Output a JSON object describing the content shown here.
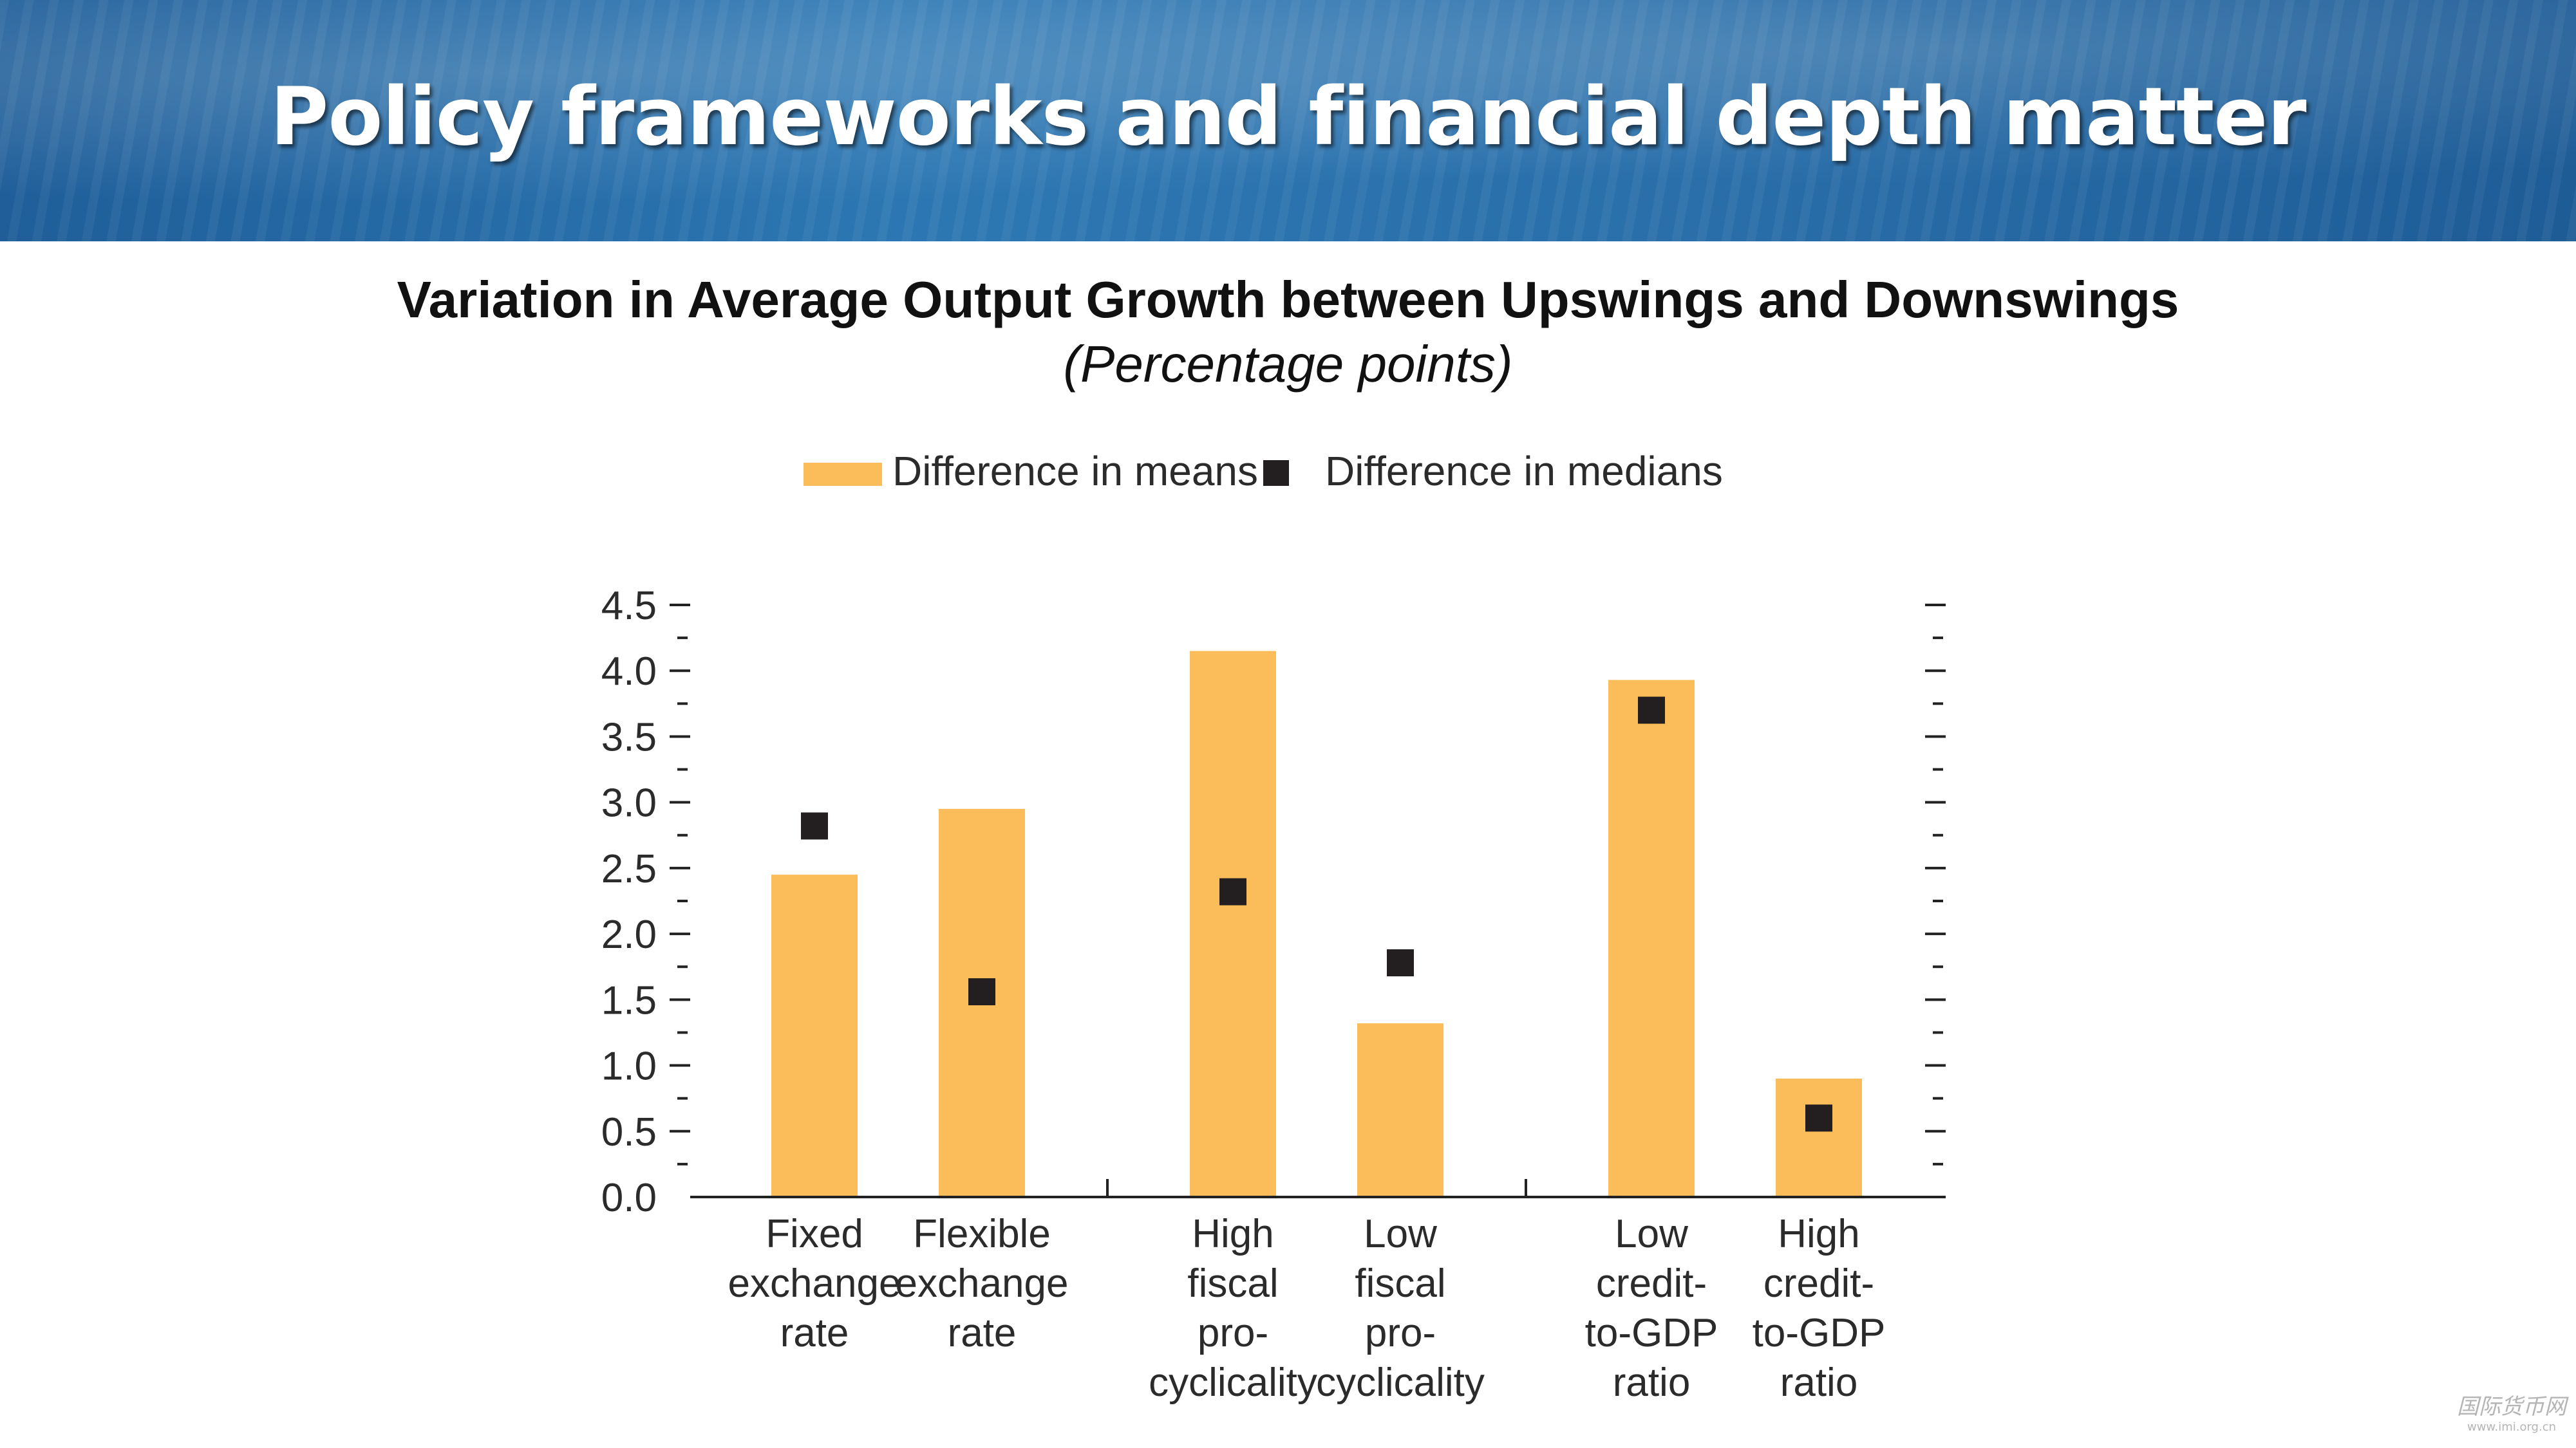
{
  "slide": {
    "title": "Policy frameworks and financial depth matter"
  },
  "chart_data": {
    "type": "bar",
    "title": "Variation in Average Output Growth between Upswings and Downswings",
    "subtitle": "(Percentage points)",
    "categories": [
      [
        "Fixed",
        "exchange",
        "rate"
      ],
      [
        "Flexible",
        "exchange",
        "rate"
      ],
      [
        "High",
        "fiscal",
        "pro-",
        "cyclicality"
      ],
      [
        "Low",
        "fiscal",
        "pro-",
        "cyclicality"
      ],
      [
        "Low",
        "credit-",
        "to-GDP",
        "ratio"
      ],
      [
        "High",
        "credit-",
        "to-GDP",
        "ratio"
      ]
    ],
    "groups": [
      [
        0,
        1
      ],
      [
        2,
        3
      ],
      [
        4,
        5
      ]
    ],
    "series": [
      {
        "name": "Difference in means",
        "kind": "bar",
        "color": "#fbbd59",
        "values": [
          2.45,
          2.95,
          4.15,
          1.32,
          3.93,
          0.9
        ]
      },
      {
        "name": "Difference in medians",
        "kind": "marker",
        "color": "#231f20",
        "values": [
          2.82,
          1.56,
          2.32,
          1.78,
          3.7,
          0.6
        ]
      }
    ],
    "ylim": [
      0,
      4.5
    ],
    "yticks": [
      "0.0",
      "0.5",
      "1.0",
      "1.5",
      "2.0",
      "2.5",
      "3.0",
      "3.5",
      "4.0",
      "4.5"
    ],
    "minor_ticks": true,
    "right_axis_ticks": true,
    "legend_position": "top",
    "grid": false
  },
  "watermark": {
    "line1": "国际货币网",
    "line2": "www.imi.org.cn"
  }
}
